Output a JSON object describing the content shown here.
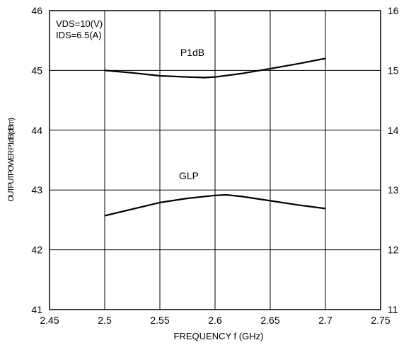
{
  "chart_data": {
    "type": "line",
    "title": "",
    "xlabel": "FREQUENCY f (GHz)",
    "ylabel": "OUTPUTPOWER P1dB(dBm)",
    "xlim": [
      2.45,
      2.75
    ],
    "ylim": [
      41,
      46
    ],
    "y2lim": [
      11,
      16
    ],
    "xticks": [
      "2.45",
      "2.5",
      "2.55",
      "2.6",
      "2.65",
      "2.7",
      "2.75"
    ],
    "yticks": [
      "41",
      "42",
      "43",
      "44",
      "45",
      "46"
    ],
    "y2ticks": [
      "11",
      "12",
      "13",
      "14",
      "15",
      "16"
    ],
    "grid": true,
    "annotations": [
      "VDS=10(V)",
      "IDS=6.5(A)"
    ],
    "series": [
      {
        "name": "P1dB",
        "axis": "left",
        "x": [
          2.5,
          2.525,
          2.55,
          2.575,
          2.59,
          2.6,
          2.625,
          2.65,
          2.675,
          2.7
        ],
        "y": [
          45.0,
          44.96,
          44.91,
          44.89,
          44.88,
          44.89,
          44.95,
          45.03,
          45.11,
          45.2
        ]
      },
      {
        "name": "GLP",
        "axis": "left",
        "x": [
          2.5,
          2.525,
          2.55,
          2.575,
          2.6,
          2.61,
          2.625,
          2.65,
          2.675,
          2.7
        ],
        "y": [
          42.57,
          42.68,
          42.79,
          42.86,
          42.91,
          42.92,
          42.89,
          42.82,
          42.75,
          42.69
        ]
      }
    ]
  }
}
